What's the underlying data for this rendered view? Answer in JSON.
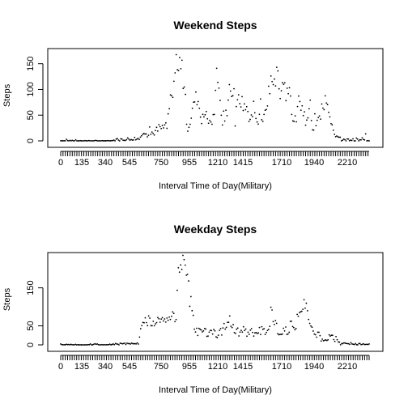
{
  "chart_data": [
    {
      "type": "scatter",
      "title": "Weekend Steps",
      "xlabel": "Interval Time of Day(Military)",
      "ylabel": "Steps",
      "xticks": [
        "0",
        "135",
        "340",
        "545",
        "750",
        "955",
        "1210",
        "1415",
        "1710",
        "1940",
        "2210"
      ],
      "yticks": [
        0,
        50,
        100,
        150
      ],
      "ylim": [
        0,
        170
      ],
      "grid": false,
      "series": [
        {
          "values": [
            0.2,
            0.1,
            0.1,
            0.2,
            0,
            3,
            0.5,
            0,
            1,
            0,
            1,
            0,
            0.2,
            2,
            0,
            0.1,
            0,
            0.3,
            0.1,
            0,
            0,
            0.5,
            0.1,
            0,
            0.5,
            0.4,
            0,
            0,
            0.1,
            0.2,
            1,
            0.5,
            0,
            0.1,
            0,
            0.2,
            0.4,
            0.1,
            0.1,
            0.1,
            0.3,
            0.4,
            0.2,
            0.1,
            0.4,
            0.5,
            1.5,
            0.1,
            3.3,
            4.4,
            1.5,
            0,
            3.9,
            3.5,
            1.1,
            1,
            0.8,
            2.4,
            5.6,
            3.3,
            1.3,
            2.6,
            1.5,
            1.8,
            6.6,
            2,
            3.4,
            4.7,
            2.7,
            7.3,
            9.8,
            12.5,
            14.3,
            13.3,
            13.4,
            7.8,
            10.8,
            27,
            12.8,
            17.1,
            14.4,
            11.4,
            20.1,
            26.3,
            19,
            31.5,
            27.5,
            23.8,
            30,
            25.1,
            31.1,
            34.9,
            24.3,
            52.4,
            62.5,
            89.3,
            87.8,
            84.6,
            115.9,
            132.2,
            167.6,
            138.3,
            136.5,
            161.9,
            140.3,
            156.8,
            102,
            104.7,
            90.4,
            32.3,
            18.8,
            26.4,
            32.3,
            44.1,
            63.4,
            75.2,
            75.7,
            94.9,
            70.2,
            76.4,
            63.4,
            46.1,
            33.7,
            51.5,
            46.7,
            50.7,
            57.1,
            42.9,
            34.2,
            39.7,
            36.6,
            32.3,
            51,
            51.3,
            98.2,
            141.1,
            113.6,
            102.5,
            78.5,
            49.8,
            30.9,
            57.9,
            38.6,
            59.6,
            49,
            79.3,
            109.4,
            96.8,
            86.3,
            87.9,
            101.3,
            28.9,
            66.7,
            79.9,
            89.5,
            72.3,
            65.9,
            85.9,
            59,
            71.8,
            60.5,
            66.5,
            57,
            37.8,
            41.6,
            50.4,
            47.2,
            76.9,
            54.5,
            43.6,
            36.7,
            32.7,
            51.5,
            81.4,
            41,
            37.8,
            51.3,
            59.4,
            60.9,
            67.9,
            106.3,
            91.7,
            126.1,
            115.2,
            109.3,
            120.1,
            106.9,
            143.1,
            135.9,
            101.2,
            82.2,
            97.4,
            113,
            110,
            112.9,
            78.2,
            102.3,
            91.7,
            103.3,
            87.2,
            51.3,
            38.9,
            37.6,
            48.6,
            37,
            66.7,
            87.1,
            76.4,
            59.6,
            68.1,
            49.2,
            56.5,
            30.5,
            40.4,
            44.6,
            62.4,
            79.1,
            39.6,
            21.4,
            20.9,
            52.5,
            29.5,
            40,
            45.2,
            48.4,
            42.3,
            71.6,
            63.8,
            60.7,
            87.6,
            73.5,
            70.5,
            55.4,
            46.6,
            33.4,
            31.2,
            20.6,
            12.7,
            8.1,
            9.4,
            7.8,
            7,
            7,
            0,
            1.3,
            3.3,
            2.3,
            0,
            3.8,
            3.5,
            0.3,
            1.5,
            0.7,
            3.9,
            0,
            0,
            5.3,
            3.3,
            0,
            2.1,
            1.9,
            5.8,
            2.8,
            1.8,
            13.6,
            0,
            0.5,
            0
          ]
        }
      ]
    },
    {
      "type": "scatter",
      "title": "Weekday Steps",
      "xlabel": "Interval Time of Day(Military)",
      "ylabel": "Steps",
      "xticks": [
        "0",
        "135",
        "340",
        "545",
        "750",
        "955",
        "1210",
        "1415",
        "1710",
        "1940",
        "2210"
      ],
      "yticks": [
        0,
        50,
        150
      ],
      "ylim": [
        0,
        230
      ],
      "grid": false,
      "series": [
        {
          "values": [
            2.3,
            0.4,
            0.2,
            0.2,
            0.1,
            1.6,
            0.6,
            1.1,
            0,
            1.3,
            0.3,
            0.2,
            0,
            1.4,
            0,
            0.2,
            0.1,
            0,
            0.1,
            0,
            0,
            0,
            0.1,
            0,
            0.5,
            0.4,
            2.4,
            0,
            0.1,
            1.6,
            2.9,
            1.4,
            2.4,
            0.5,
            0,
            0,
            0.5,
            0,
            0.5,
            0,
            0.2,
            0.4,
            0.3,
            1.8,
            0.1,
            0.9,
            2.4,
            0.5,
            3.6,
            2.1,
            1.8,
            0,
            4.2,
            3.7,
            2.6,
            3.4,
            4.6,
            1.2,
            4.6,
            3.2,
            3.4,
            2,
            4.4,
            3.3,
            2.8,
            3.1,
            2.5,
            5,
            2.2,
            20.5,
            42.5,
            50.6,
            59,
            58.1,
            71,
            58.5,
            50.7,
            76.2,
            70.4,
            50.6,
            50.2,
            62,
            50.3,
            55.4,
            58.6,
            71.8,
            68.5,
            59.6,
            67.9,
            71.5,
            62.9,
            68.1,
            59.9,
            70.5,
            64.7,
            73,
            66.9,
            75,
            86.7,
            82.6,
            61.3,
            66.5,
            143.4,
            202.9,
            191.3,
            210.2,
            198.7,
            235.3,
            224.1,
            209.7,
            183.2,
            185.6,
            168.1,
            101.3,
            126.8,
            89.8,
            77.6,
            41.3,
            33.8,
            43.7,
            24.7,
            43.4,
            41.1,
            39.2,
            34.1,
            36.6,
            43.1,
            41.6,
            22.4,
            23.1,
            33.6,
            38.1,
            37.6,
            28.4,
            40.3,
            36.8,
            21,
            19.3,
            25.3,
            38.1,
            42.8,
            25.8,
            44.4,
            55.9,
            41.4,
            45.9,
            59.1,
            59.3,
            76.2,
            48.9,
            45.5,
            53.1,
            32.5,
            30,
            41.1,
            44.2,
            23.5,
            33.5,
            38,
            33.7,
            47.5,
            37.9,
            41.7,
            22.8,
            33.3,
            27.6,
            38.5,
            42.6,
            32.7,
            23.1,
            31.3,
            32.4,
            29.8,
            31.5,
            45.6,
            27.4,
            47.6,
            40.9,
            42.5,
            27.5,
            32.6,
            37.8,
            40.8,
            48.6,
            98.9,
            91.6,
            61.3,
            53.5,
            63.9,
            56.7,
            29.2,
            26.7,
            27.5,
            27.3,
            28.3,
            43.6,
            36.6,
            46.9,
            27.5,
            28.5,
            33.1,
            61.7,
            62.2,
            48.2,
            45.5,
            39.9,
            43.1,
            80.2,
            75.3,
            84.7,
            87,
            88.2,
            93.4,
            118.7,
            96.6,
            109.5,
            89.7,
            66.9,
            56.5,
            49.6,
            46.4,
            36.3,
            28.5,
            26.6,
            20.3,
            33.3,
            33.1,
            24.2,
            10.1,
            14.9,
            10.8,
            12,
            13,
            11.4,
            13.3,
            26.3,
            23.2,
            25.1,
            25.1,
            13.8,
            9.1,
            21.9,
            13.4,
            7.8,
            7.1,
            0.2,
            3.3,
            3.3,
            5.3,
            4.4,
            3.8,
            3.2,
            2.9,
            1.4,
            5.8,
            2.5,
            1.6,
            0.8,
            3.3,
            0.4,
            0.1,
            3.4,
            3.3,
            0.5,
            1.3,
            2.9,
            0.8,
            1.1,
            1.6,
            0.8,
            2.4
          ]
        }
      ]
    }
  ]
}
